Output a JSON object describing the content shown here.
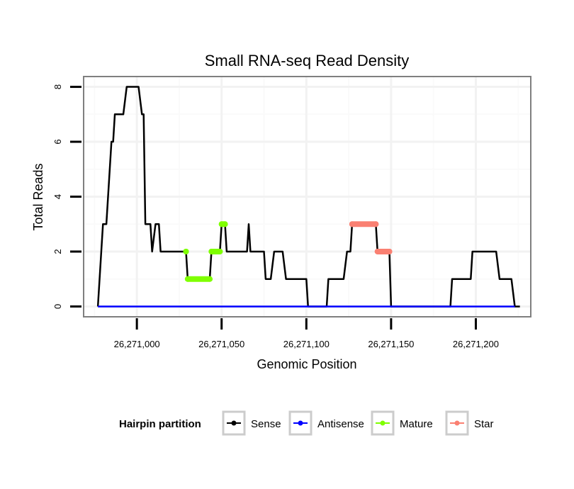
{
  "chart_data": {
    "type": "line",
    "title": "Small RNA-seq Read Density",
    "xlabel": "Genomic Position",
    "ylabel": "Total Reads",
    "xlim": [
      26270969,
      26271232
    ],
    "ylim": [
      -0.35,
      8.35
    ],
    "x_ticks": [
      26271000,
      26271050,
      26271100,
      26271150,
      26271200
    ],
    "x_tick_labels": [
      "26,271,000",
      "26,271,050",
      "26,271,100",
      "26,271,150",
      "26,271,200"
    ],
    "y_ticks": [
      0,
      2,
      4,
      6,
      8
    ],
    "y_tick_labels": [
      "0",
      "2",
      "4",
      "6",
      "8"
    ],
    "grid": true,
    "legend": {
      "title": "Hairpin partition",
      "position": "bottom",
      "entries": [
        {
          "name": "Sense",
          "color": "#000000"
        },
        {
          "name": "Antisense",
          "color": "#0000ff"
        },
        {
          "name": "Mature",
          "color": "#7fff00"
        },
        {
          "name": "Star",
          "color": "#fa8072"
        }
      ]
    },
    "series": [
      {
        "name": "Sense",
        "color": "#000000",
        "x": [
          26270977,
          26270979,
          26270980,
          26270982,
          26270985,
          26270986,
          26270987,
          26270992,
          26270994,
          26271001,
          26271003,
          26271004,
          26271005,
          26271008,
          26271009,
          26271011,
          26271013,
          26271014,
          26271029,
          26271030,
          26271043,
          26271044,
          26271049,
          26271050,
          26271052,
          26271053,
          26271065,
          26271066,
          26271067,
          26271075,
          26271076,
          26271079,
          26271081,
          26271086,
          26271088,
          26271100,
          26271101,
          26271112,
          26271113,
          26271122,
          26271124,
          26271126,
          26271127,
          26271141,
          26271142,
          26271149,
          26271150,
          26271185,
          26271186,
          26271197,
          26271198,
          26271212,
          26271214,
          26271221,
          26271223,
          26271226
        ],
        "y": [
          0,
          2,
          3,
          3,
          6,
          6,
          7,
          7,
          8,
          8,
          7,
          7,
          3,
          3,
          2,
          3,
          3,
          2,
          2,
          1,
          1,
          2,
          2,
          3,
          3,
          2,
          2,
          3,
          2,
          2,
          1,
          1,
          2,
          2,
          1,
          1,
          0,
          0,
          1,
          1,
          2,
          2,
          3,
          3,
          2,
          2,
          0,
          0,
          1,
          1,
          2,
          2,
          1,
          1,
          0,
          0
        ]
      },
      {
        "name": "Antisense",
        "color": "#0000ff",
        "x": [
          26270977,
          26271223
        ],
        "y": [
          0,
          0
        ]
      },
      {
        "name": "Mature",
        "color": "#7fff00",
        "segments": [
          {
            "x": [
              26271029,
              26271029
            ],
            "y": [
              2,
              2
            ]
          },
          {
            "x": [
              26271030,
              26271043
            ],
            "y": [
              1,
              1
            ]
          },
          {
            "x": [
              26271044,
              26271049
            ],
            "y": [
              2,
              2
            ]
          },
          {
            "x": [
              26271050,
              26271052
            ],
            "y": [
              3,
              3
            ]
          }
        ]
      },
      {
        "name": "Star",
        "color": "#fa8072",
        "segments": [
          {
            "x": [
              26271127,
              26271141
            ],
            "y": [
              3,
              3
            ]
          },
          {
            "x": [
              26271142,
              26271149
            ],
            "y": [
              2,
              2
            ]
          }
        ]
      }
    ]
  }
}
